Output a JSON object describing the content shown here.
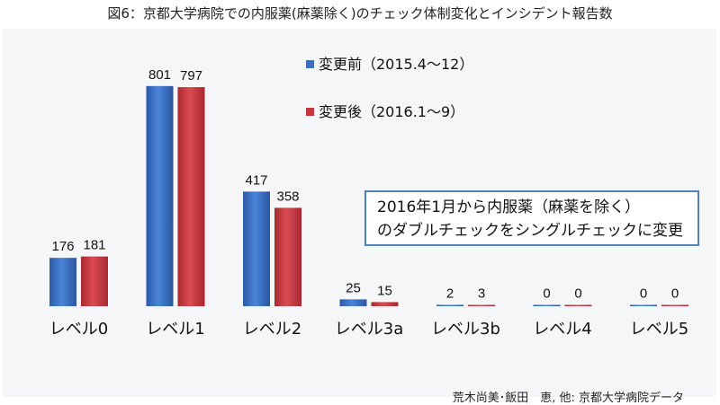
{
  "figure": {
    "title": "図6：京都大学病院での内服薬(麻薬除く)のチェック体制変化とインシデント報告数",
    "credit": "荒木尚美･飯田　恵, 他: 京都大学病院データ"
  },
  "callout": {
    "line1": "2016年1月から内服薬（麻薬を除く）",
    "line2": "のダブルチェックをシングルチェックに変更"
  },
  "colors": {
    "before": "#3a6fc4",
    "after": "#c8363d"
  },
  "chart_data": {
    "type": "bar",
    "categories": [
      "レベル0",
      "レベル1",
      "レベル2",
      "レベル3a",
      "レベル3b",
      "レベル4",
      "レベル5"
    ],
    "series": [
      {
        "name": "変更前（2015.4〜12）",
        "values": [
          176,
          801,
          417,
          25,
          2,
          0,
          0
        ]
      },
      {
        "name": "変更後（2016.1〜9）",
        "values": [
          181,
          797,
          358,
          15,
          3,
          0,
          0
        ]
      }
    ],
    "title": "",
    "xlabel": "",
    "ylabel": "",
    "ylim": [
      0,
      820
    ],
    "data_labels": true,
    "grid": false,
    "legend_position": "top-center"
  }
}
